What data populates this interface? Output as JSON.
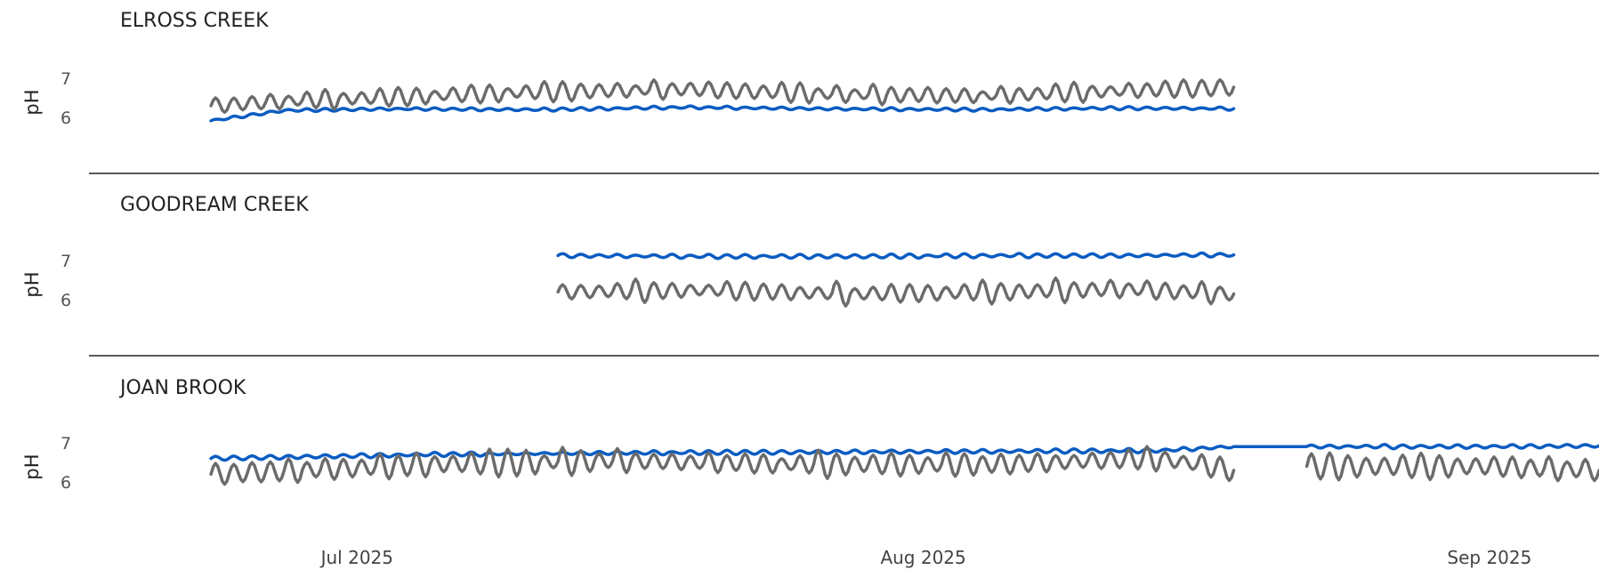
{
  "chart_data": {
    "type": "line",
    "x_axis": {
      "type": "date",
      "range": [
        "2025-06-19",
        "2025-09-05"
      ],
      "tick_labels": [
        {
          "date": "2025-07-01",
          "label": "Jul 2025"
        },
        {
          "date": "2025-08-01",
          "label": "Aug 2025"
        },
        {
          "date": "2025-09-01",
          "label": "Sep 2025"
        }
      ]
    },
    "panels": [
      {
        "title": "ELROSS CREEK",
        "ylabel": "pH",
        "yticks": [
          6,
          7
        ],
        "ylim": [
          5.6,
          7.4
        ],
        "series": [
          {
            "color": "#0a5cc2",
            "line_width": 3.5,
            "dates": [
              "2025-06-23",
              "2025-06-27",
              "2025-07-03",
              "2025-07-11",
              "2025-07-19",
              "2025-07-27",
              "2025-08-04",
              "2025-08-12",
              "2025-08-20",
              "2025-08-28",
              "2025-09-05"
            ],
            "values": [
              5.92,
              6.18,
              6.22,
              6.2,
              6.26,
              6.22,
              6.2,
              6.24,
              6.22,
              6.12,
              6.16
            ],
            "end_date": "2025-08-18",
            "wiggle": {
              "period_days": 1,
              "amplitude": 0.03
            }
          },
          {
            "color": "#6b6b6b",
            "line_width": 3.5,
            "dates": [
              "2025-06-23",
              "2025-06-27",
              "2025-07-03",
              "2025-07-11",
              "2025-07-19",
              "2025-07-27",
              "2025-08-04",
              "2025-08-12",
              "2025-08-20",
              "2025-08-28",
              "2025-09-05"
            ],
            "values": [
              6.3,
              6.42,
              6.52,
              6.65,
              6.72,
              6.6,
              6.55,
              6.68,
              6.8,
              6.6,
              6.55
            ],
            "end_date": "2025-08-18",
            "wiggle": {
              "period_days": 1,
              "amplitude": 0.18
            }
          }
        ]
      },
      {
        "title": "GOODREAM CREEK",
        "ylabel": "pH",
        "yticks": [
          6,
          7
        ],
        "ylim": [
          5.6,
          7.4
        ],
        "series": [
          {
            "color": "#0a5cc2",
            "line_width": 3.5,
            "dates": [
              "2025-07-12",
              "2025-07-20",
              "2025-07-28",
              "2025-08-05",
              "2025-08-12",
              "2025-08-18"
            ],
            "values": [
              7.12,
              7.1,
              7.1,
              7.12,
              7.12,
              7.14
            ],
            "wiggle": {
              "period_days": 1,
              "amplitude": 0.04
            }
          },
          {
            "color": "#6b6b6b",
            "line_width": 3.5,
            "dates": [
              "2025-07-12",
              "2025-07-20",
              "2025-07-28",
              "2025-08-05",
              "2025-08-12",
              "2025-08-18"
            ],
            "values": [
              6.2,
              6.25,
              6.15,
              6.2,
              6.28,
              6.15
            ],
            "wiggle": {
              "period_days": 1,
              "amplitude": 0.22
            }
          }
        ]
      },
      {
        "title": "JOAN BROOK",
        "ylabel": "pH",
        "yticks": [
          6,
          7
        ],
        "ylim": [
          5.6,
          7.4
        ],
        "series": [
          {
            "color": "#0a5cc2",
            "line_width": 3.5,
            "dates": [
              "2025-06-23",
              "2025-07-05",
              "2025-07-15",
              "2025-07-25",
              "2025-08-05",
              "2025-08-14",
              "2025-08-18",
              "2025-08-22",
              "2025-09-01",
              "2025-09-07"
            ],
            "values": [
              6.6,
              6.7,
              6.74,
              6.76,
              6.78,
              6.8,
              6.9,
              6.9,
              6.9,
              6.92
            ],
            "flat_range": [
              "2025-08-18",
              "2025-08-22"
            ],
            "wiggle": {
              "period_days": 1,
              "amplitude": 0.04
            }
          },
          {
            "color": "#6b6b6b",
            "line_width": 3.5,
            "dates": [
              "2025-06-23",
              "2025-07-05",
              "2025-07-15",
              "2025-07-25",
              "2025-08-05",
              "2025-08-14",
              "2025-08-18",
              "2025-08-22",
              "2025-09-01",
              "2025-09-07"
            ],
            "values": [
              6.2,
              6.45,
              6.55,
              6.45,
              6.45,
              6.6,
              6.3,
              6.4,
              6.4,
              6.3
            ],
            "gap": [
              "2025-08-18",
              "2025-08-22"
            ],
            "wiggle": {
              "period_days": 1,
              "amplitude": 0.25
            }
          }
        ]
      }
    ],
    "grid": false,
    "legend": "none"
  }
}
